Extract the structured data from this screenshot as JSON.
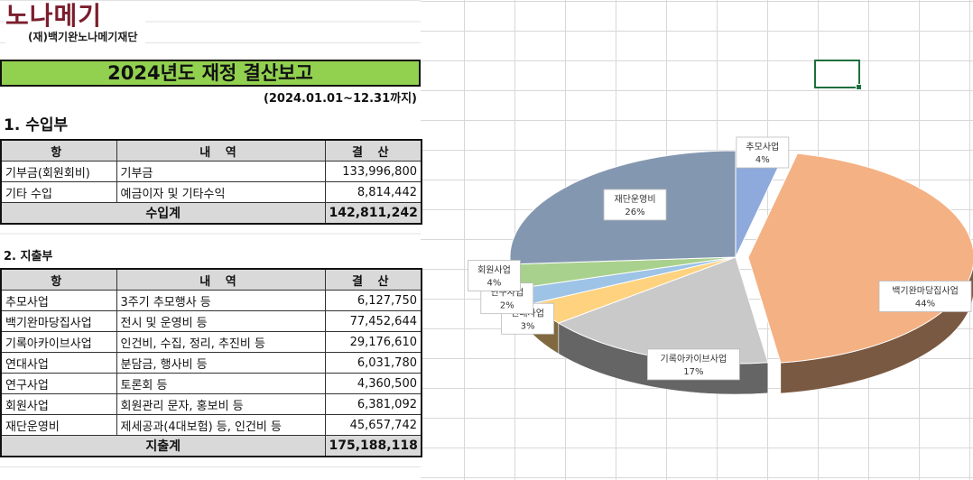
{
  "logo": {
    "mark": "노나메기",
    "subtitle": "(재)백기완노나메기재단"
  },
  "report": {
    "title": "2024년도 재정 결산보고",
    "period": "(2024.01.01~12.31까지)",
    "income": {
      "heading": "1. 수입부",
      "columns": [
        "항",
        "내  역",
        "결 산"
      ],
      "rows": [
        {
          "item": "기부금(회원회비)",
          "detail": "기부금",
          "amount": "133,996,800"
        },
        {
          "item": "기타 수입",
          "detail": "예금이자 및 기타수익",
          "amount": "8,814,442"
        }
      ],
      "total_label": "수입계",
      "total": "142,811,242"
    },
    "expense": {
      "heading": "2. 지출부",
      "columns": [
        "항",
        "내  역",
        "결 산"
      ],
      "rows": [
        {
          "item": "추모사업",
          "detail": "3주기 추모행사 등",
          "amount": "6,127,750"
        },
        {
          "item": "백기완마당집사업",
          "detail": "전시 및 운영비 등",
          "amount": "77,452,644"
        },
        {
          "item": "기록아카이브사업",
          "detail": "인건비, 수집, 정리, 추진비 등",
          "amount": "29,176,610"
        },
        {
          "item": "연대사업",
          "detail": "분담금, 행사비 등",
          "amount": "6,031,780"
        },
        {
          "item": "연구사업",
          "detail": "토론회 등",
          "amount": "4,360,500"
        },
        {
          "item": "회원사업",
          "detail": "회원관리 문자, 홍보비 등",
          "amount": "6,381,092"
        },
        {
          "item": "재단운영비",
          "detail": "제세공과(4대보험) 등, 인건비 등",
          "amount": "45,657,742"
        }
      ],
      "total_label": "지출계",
      "total": "175,188,118"
    }
  },
  "chart_data": {
    "type": "pie",
    "title": "",
    "style": "3d-exploded",
    "slices": [
      {
        "label": "추모사업",
        "percent": 4,
        "value": 6127750,
        "color": "#8ea9db"
      },
      {
        "label": "백기완마당집사업",
        "percent": 44,
        "value": 77452644,
        "color": "#f4b183"
      },
      {
        "label": "기록아카이브사업",
        "percent": 17,
        "value": 29176610,
        "color": "#c9c9c9"
      },
      {
        "label": "연대사업",
        "percent": 3,
        "value": 6031780,
        "color": "#ffd27f"
      },
      {
        "label": "연구사업",
        "percent": 2,
        "value": 4360500,
        "color": "#9dc3e6"
      },
      {
        "label": "회원사업",
        "percent": 4,
        "value": 6381092,
        "color": "#a9d18e"
      },
      {
        "label": "재단운영비",
        "percent": 26,
        "value": 45657742,
        "color": "#8497b0"
      }
    ]
  }
}
